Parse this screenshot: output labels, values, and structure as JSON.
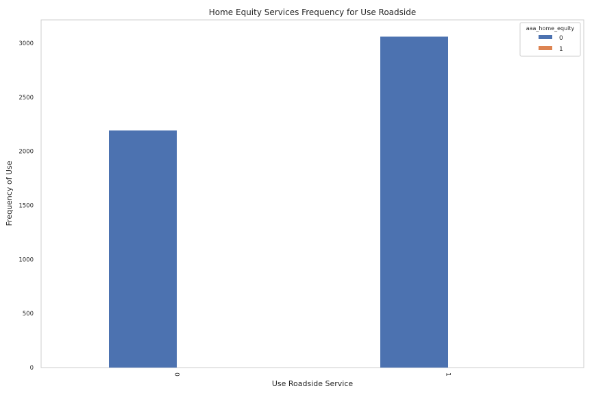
{
  "chart_data": {
    "type": "bar",
    "title": "Home Equity Services Frequency for Use Roadside",
    "xlabel": "Use Roadside Service",
    "ylabel": "Frequency of Use",
    "categories": [
      "0",
      "1"
    ],
    "series": [
      {
        "name": "0",
        "values": [
          2192,
          3060
        ],
        "color": "#4c72b0"
      },
      {
        "name": "1",
        "values": [
          0,
          0
        ],
        "color": "#dd8452"
      }
    ],
    "legend": {
      "title": "aaa_home_equity",
      "placement": "top-right"
    },
    "ylim": [
      0,
      3215
    ],
    "yticks": [
      0,
      500,
      1000,
      1500,
      2000,
      2500,
      3000
    ],
    "grid": false
  }
}
